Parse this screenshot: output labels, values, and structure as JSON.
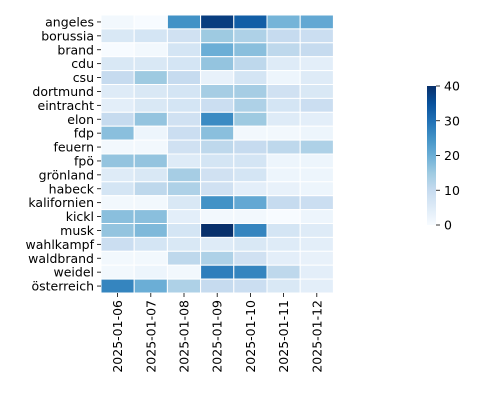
{
  "chart_data": {
    "type": "heatmap",
    "title": "",
    "xlabel": "",
    "ylabel": "",
    "x_categories": [
      "2025-01-06",
      "2025-01-07",
      "2025-01-08",
      "2025-01-09",
      "2025-01-10",
      "2025-01-11",
      "2025-01-12"
    ],
    "y_categories": [
      "angeles",
      "borussia",
      "brand",
      "cdu",
      "csu",
      "dortmund",
      "eintracht",
      "elon",
      "fdp",
      "feuern",
      "fpö",
      "grönland",
      "habeck",
      "kalifornien",
      "kickl",
      "musk",
      "wahlkampf",
      "waldbrand",
      "weidel",
      "österreich"
    ],
    "values": [
      [
        1,
        0,
        25,
        38,
        33,
        19,
        21
      ],
      [
        6,
        7,
        8,
        15,
        13,
        10,
        9
      ],
      [
        0,
        1,
        7,
        20,
        17,
        11,
        10
      ],
      [
        6,
        6,
        7,
        16,
        11,
        5,
        4
      ],
      [
        10,
        15,
        10,
        3,
        7,
        2,
        5
      ],
      [
        5,
        6,
        7,
        14,
        14,
        8,
        6
      ],
      [
        4,
        6,
        7,
        9,
        13,
        7,
        9
      ],
      [
        10,
        16,
        8,
        26,
        15,
        5,
        4
      ],
      [
        17,
        2,
        9,
        17,
        1,
        1,
        2
      ],
      [
        1,
        1,
        8,
        11,
        10,
        11,
        13
      ],
      [
        16,
        16,
        5,
        7,
        7,
        2,
        2
      ],
      [
        5,
        6,
        14,
        8,
        7,
        2,
        2
      ],
      [
        7,
        11,
        13,
        8,
        4,
        3,
        2
      ],
      [
        1,
        1,
        6,
        25,
        21,
        10,
        9
      ],
      [
        17,
        17,
        4,
        1,
        1,
        0,
        2
      ],
      [
        16,
        18,
        7,
        41,
        27,
        7,
        5
      ],
      [
        9,
        7,
        6,
        5,
        6,
        5,
        4
      ],
      [
        1,
        1,
        11,
        13,
        8,
        4,
        3
      ],
      [
        1,
        2,
        1,
        28,
        27,
        11,
        4
      ],
      [
        27,
        20,
        13,
        10,
        9,
        6,
        4
      ]
    ],
    "colorbar": {
      "min": 0,
      "max": 40,
      "ticks": [
        0,
        10,
        20,
        30,
        40
      ]
    },
    "colormap": "Blues",
    "colors": {
      "low": "#f7fbff",
      "high": "#08306b",
      "gridline": "#ffffff"
    }
  }
}
